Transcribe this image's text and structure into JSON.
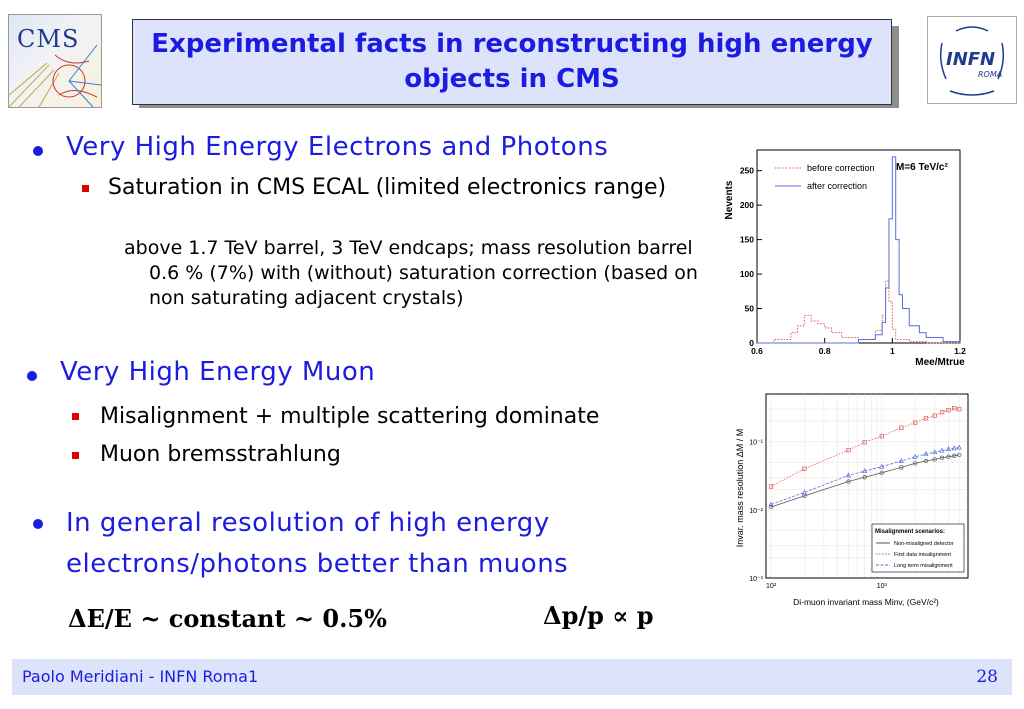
{
  "header": {
    "title": "Experimental facts in reconstructing high energy objects in CMS",
    "logo_left": "CMS",
    "logo_right": "INFN",
    "logo_right_sub": "ROMA"
  },
  "bullets": {
    "b1": "Very High Energy Electrons and Photons",
    "b1_sub": "Saturation in CMS ECAL (limited electronics range)",
    "b1_detail": "above 1.7 TeV barrel, 3 TeV endcaps; mass resolution barrel 0.6 % (7%) with (without) saturation correction (based on non saturating adjacent crystals)",
    "b2": "Very High Energy Muon",
    "b2_sub1": "Misalignment + multiple scattering dominate",
    "b2_sub2": "Muon bremsstrahlung",
    "b3": "In general resolution of high energy electrons/photons better than muons"
  },
  "formulas": {
    "electron": "ΔE/E ~ constant ~ 0.5%",
    "muon": "Δp/p ∝ p"
  },
  "footer": {
    "author": "Paolo Meridiani  - INFN Roma1",
    "page": "28"
  },
  "chart_data": [
    {
      "type": "line",
      "title": "",
      "annotation": "M=6 TeV/c²",
      "xlabel": "Mee/Mtrue",
      "ylabel": "Nevents",
      "xlim": [
        0.6,
        1.2
      ],
      "ylim": [
        0,
        280
      ],
      "xticks": [
        "0.6",
        "0.8",
        "1",
        "1.2"
      ],
      "yticks": [
        "0",
        "50",
        "100",
        "150",
        "200",
        "250"
      ],
      "legend_position": "top-left",
      "colors": {
        "before": "#e05a5a",
        "after": "#5a6ee0"
      },
      "series": [
        {
          "name": "before correction",
          "style": "dotted",
          "x": [
            0.6,
            0.65,
            0.7,
            0.72,
            0.74,
            0.76,
            0.78,
            0.8,
            0.82,
            0.85,
            0.9,
            0.95,
            0.97,
            0.98,
            0.99,
            1.0,
            1.01,
            1.05,
            1.1,
            1.2
          ],
          "y": [
            0,
            5,
            15,
            25,
            40,
            32,
            28,
            22,
            15,
            8,
            5,
            18,
            40,
            90,
            60,
            20,
            5,
            2,
            0,
            0
          ]
        },
        {
          "name": "after correction",
          "style": "solid",
          "x": [
            0.6,
            0.8,
            0.9,
            0.95,
            0.97,
            0.98,
            0.99,
            1.0,
            1.01,
            1.02,
            1.03,
            1.05,
            1.08,
            1.1,
            1.15,
            1.2
          ],
          "y": [
            0,
            0,
            5,
            12,
            30,
            80,
            180,
            270,
            150,
            70,
            50,
            25,
            15,
            8,
            2,
            0
          ]
        }
      ]
    },
    {
      "type": "line",
      "title": "",
      "xlabel": "Di-muon invariant mass Minv,  (GeV/c²)",
      "ylabel": "Invar. mass resolution  ΔM / M",
      "xscale": "log",
      "yscale": "log",
      "xlim": [
        90,
        6000
      ],
      "ylim": [
        0.001,
        0.5
      ],
      "xticks": [
        "10²",
        "10³"
      ],
      "yticks": [
        "10⁻³",
        "10⁻²",
        "10⁻¹"
      ],
      "legend_title": "Misalignment scenarios:",
      "legend_position": "bottom-right",
      "colors": {
        "ideal": "#555555",
        "first": "#e05a5a",
        "long": "#5a6ee0"
      },
      "series": [
        {
          "name": "Non-misaligned detector",
          "x": [
            100,
            200,
            500,
            700,
            1000,
            1500,
            2000,
            2500,
            3000,
            3500,
            4000,
            4500,
            5000
          ],
          "y": [
            0.011,
            0.016,
            0.026,
            0.03,
            0.035,
            0.042,
            0.048,
            0.052,
            0.055,
            0.058,
            0.06,
            0.062,
            0.064
          ]
        },
        {
          "name": "First data misalignment",
          "x": [
            100,
            200,
            500,
            700,
            1000,
            1500,
            2000,
            2500,
            3000,
            3500,
            4000,
            4500,
            5000
          ],
          "y": [
            0.022,
            0.04,
            0.075,
            0.098,
            0.12,
            0.16,
            0.19,
            0.22,
            0.24,
            0.27,
            0.29,
            0.31,
            0.3
          ]
        },
        {
          "name": "Long term misalignment",
          "x": [
            100,
            200,
            500,
            700,
            1000,
            1500,
            2000,
            2500,
            3000,
            3500,
            4000,
            4500,
            5000
          ],
          "y": [
            0.012,
            0.018,
            0.032,
            0.037,
            0.043,
            0.052,
            0.06,
            0.066,
            0.07,
            0.074,
            0.078,
            0.08,
            0.082
          ]
        }
      ]
    }
  ]
}
